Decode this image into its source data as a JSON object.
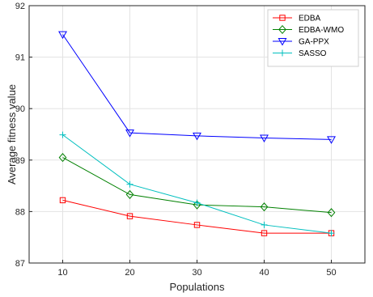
{
  "chart_data": {
    "type": "line",
    "title": "",
    "xlabel": "Populations",
    "ylabel": "Average fitness value",
    "x": [
      10,
      20,
      30,
      40,
      50
    ],
    "xlim": [
      5,
      55
    ],
    "ylim": [
      87,
      92
    ],
    "xticks": [
      "10",
      "20",
      "30",
      "40",
      "50"
    ],
    "yticks": [
      "87",
      "88",
      "89",
      "90",
      "91",
      "92"
    ],
    "grid": true,
    "legend_position": "top-right",
    "series": [
      {
        "name": "EDBA",
        "color": "#ff0000",
        "marker": "square",
        "values": [
          88.22,
          87.91,
          87.74,
          87.58,
          87.58
        ]
      },
      {
        "name": "EDBA-WMO",
        "color": "#008000",
        "marker": "diamond",
        "values": [
          89.05,
          88.33,
          88.13,
          88.09,
          87.98
        ]
      },
      {
        "name": "GA-PPX",
        "color": "#0000ff",
        "marker": "triangle-down",
        "values": [
          91.44,
          89.53,
          89.47,
          89.43,
          89.4
        ]
      },
      {
        "name": "SASSO",
        "color": "#00bfbf",
        "marker": "plus",
        "values": [
          89.49,
          88.53,
          88.17,
          87.74,
          87.58
        ]
      }
    ]
  }
}
